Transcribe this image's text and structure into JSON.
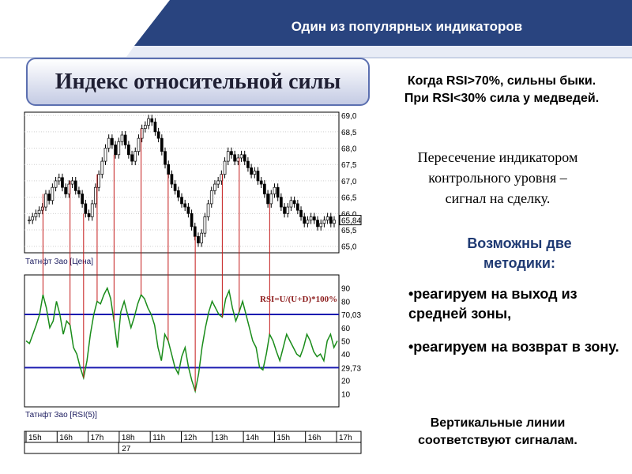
{
  "header": {
    "title": "Один из популярных индикаторов"
  },
  "slide_title": "Индекс относительной силы",
  "notes": {
    "rsi_rule_line1": "Когда RSI>70%, сильны быки.",
    "rsi_rule_line2": "При RSI<30% сила у медведей.",
    "crossing_line1": "Пересечение  индикатором",
    "crossing_line2": "контрольного уровня –",
    "crossing_line3": "сигнал на сделку.",
    "methods_title_line1": "Возможны  две",
    "methods_title_line2": "методики:",
    "method_1": "•реагируем  на выход из средней зоны,",
    "method_2": "•реагируем  на возврат в зону.",
    "vertical_line1": "Вертикальные  линии",
    "vertical_line2": "соответствуют  сигналам."
  },
  "chart_data": [
    {
      "type": "candlestick",
      "legend": "Татнфт Зао [Цена]",
      "ylim": [
        64.8,
        69.1
      ],
      "y_ticks": [
        "69,0",
        "68,5",
        "68,0",
        "67,5",
        "67,0",
        "66,5",
        "66,0",
        "65,5",
        "65,0"
      ],
      "last_price_label": "65,84",
      "close_values": [
        65.8,
        65.9,
        66.0,
        66.1,
        66.2,
        66.6,
        66.4,
        66.8,
        67.0,
        67.1,
        66.8,
        66.6,
        66.9,
        67.0,
        66.7,
        66.6,
        66.3,
        66.0,
        65.9,
        66.3,
        66.8,
        67.2,
        67.6,
        68.0,
        68.3,
        68.1,
        67.8,
        68.2,
        68.4,
        68.1,
        67.8,
        67.6,
        67.9,
        68.3,
        68.6,
        68.7,
        68.9,
        68.8,
        68.5,
        68.3,
        67.9,
        67.5,
        67.2,
        66.9,
        66.7,
        66.5,
        66.3,
        66.2,
        66.0,
        65.6,
        65.3,
        65.1,
        65.4,
        65.9,
        66.3,
        66.7,
        66.9,
        67.0,
        67.2,
        67.6,
        67.9,
        67.8,
        67.6,
        67.7,
        67.8,
        67.6,
        67.4,
        67.2,
        67.3,
        67.0,
        66.9,
        66.6,
        66.3,
        66.6,
        66.8,
        66.5,
        66.2,
        66.0,
        66.2,
        66.4,
        66.3,
        66.1,
        65.9,
        65.7,
        65.8,
        65.9,
        65.8,
        65.6,
        65.7,
        65.8,
        65.9,
        65.7,
        65.8
      ]
    },
    {
      "type": "line",
      "legend": "Татнфт Зао [RSI(5)]",
      "formula": "RSI=U/(U+D)*100%",
      "ylim": [
        0,
        100
      ],
      "y_ticks": [
        "90",
        "80",
        "70,03",
        "60",
        "50",
        "40",
        "29,73",
        "20",
        "10"
      ],
      "levels": [
        70.03,
        29.73
      ],
      "values": [
        50,
        48,
        55,
        62,
        70,
        85,
        75,
        60,
        65,
        80,
        70,
        55,
        65,
        62,
        45,
        40,
        30,
        22,
        35,
        55,
        70,
        80,
        78,
        85,
        90,
        82,
        65,
        45,
        72,
        80,
        70,
        60,
        68,
        78,
        85,
        82,
        75,
        70,
        62,
        45,
        35,
        55,
        50,
        40,
        30,
        25,
        38,
        45,
        30,
        20,
        12,
        25,
        45,
        60,
        72,
        80,
        75,
        70,
        68,
        82,
        88,
        75,
        65,
        72,
        80,
        70,
        60,
        50,
        45,
        30,
        28,
        40,
        55,
        50,
        42,
        35,
        45,
        55,
        50,
        45,
        40,
        38,
        45,
        55,
        50,
        42,
        38,
        40,
        35,
        50,
        55,
        45,
        50
      ]
    }
  ],
  "time_axis": {
    "hours": [
      "15h",
      "16h",
      "17h",
      "18h",
      "11h",
      "12h",
      "13h",
      "14h",
      "15h",
      "16h",
      "17h"
    ],
    "date": "27"
  },
  "colors": {
    "banner": "#29447f",
    "rsi_line": "#1a8c1a",
    "level_line": "#1a1ab0",
    "signal_line": "#c41a1a"
  }
}
